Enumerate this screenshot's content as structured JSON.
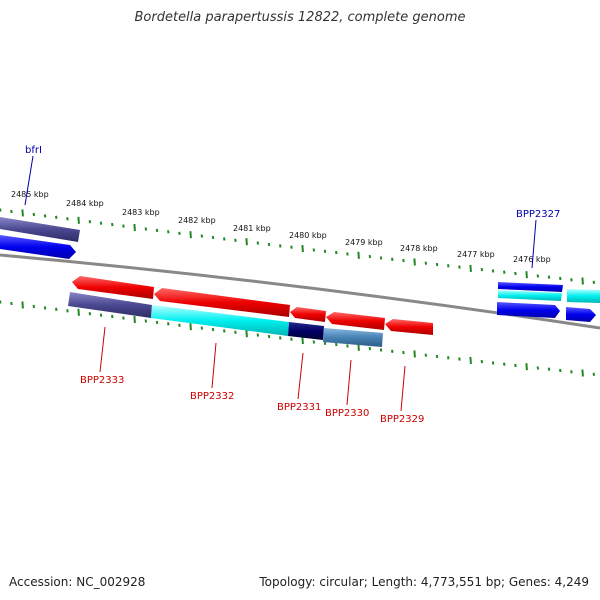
{
  "title": "Bordetella parapertussis 12822, complete genome",
  "footer": {
    "accession": "Accession: NC_002928",
    "summary": "Topology: circular; Length: 4,773,551 bp; Genes: 4,249"
  },
  "scale_ticks": [
    "2485 kbp",
    "2484 kbp",
    "2483 kbp",
    "2482 kbp",
    "2481 kbp",
    "2480 kbp",
    "2479 kbp",
    "2478 kbp",
    "2477 kbp",
    "2476 kbp"
  ],
  "gene_labels": {
    "top": [
      "bfrI",
      "BPP2327"
    ],
    "bottom": [
      "BPP2333",
      "BPP2332",
      "BPP2331",
      "BPP2330",
      "BPP2329"
    ]
  },
  "colors": {
    "forward_label": "#0000aa",
    "reverse_label": "#cc0000",
    "tick": "#228822",
    "backbone": "#888888"
  }
}
